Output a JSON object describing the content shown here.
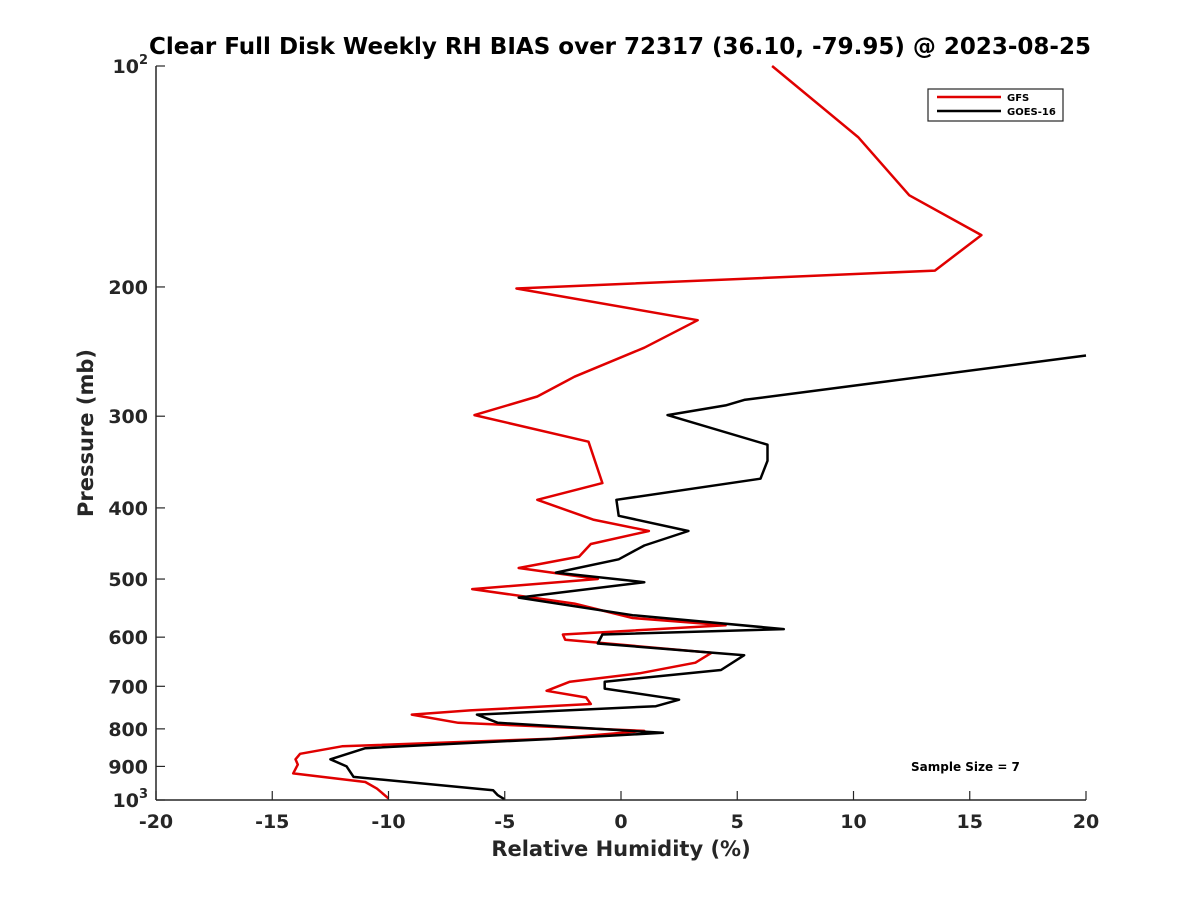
{
  "chart_data": {
    "type": "line",
    "title": "Clear Full Disk Weekly RH BIAS over 72317 (36.10, -79.95) @ 2023-08-25",
    "xlabel": "Relative Humidity (%)",
    "ylabel": "Pressure (mb)",
    "xlim": [
      -20,
      20
    ],
    "ylim": [
      100,
      1000
    ],
    "y_scale": "log",
    "y_reversed": true,
    "grid": false,
    "legend_position": "top-right",
    "x_ticks": [
      -20,
      -15,
      -10,
      -5,
      0,
      5,
      10,
      15,
      20
    ],
    "x_tick_labels": [
      "-20",
      "-15",
      "-10",
      "-5",
      "0",
      "5",
      "10",
      "15",
      "20"
    ],
    "y_ticks": [
      100,
      200,
      300,
      400,
      500,
      600,
      700,
      800,
      900,
      1000
    ],
    "y_tick_labels": [
      "10^2",
      "200",
      "300",
      "400",
      "500",
      "600",
      "700",
      "800",
      "900",
      "10^3"
    ],
    "annotation": "Sample Size = 7",
    "series": [
      {
        "name": "GFS",
        "color": "#e00000",
        "points": [
          [
            6.5,
            100
          ],
          [
            10.2,
            125
          ],
          [
            12.4,
            150
          ],
          [
            15.5,
            170
          ],
          [
            13.5,
            190
          ],
          [
            -4.5,
            201
          ],
          [
            3.3,
            222
          ],
          [
            1.0,
            242
          ],
          [
            -2.0,
            265
          ],
          [
            -3.6,
            282
          ],
          [
            -6.3,
            299
          ],
          [
            -1.4,
            325
          ],
          [
            -0.8,
            370
          ],
          [
            -3.6,
            390
          ],
          [
            -1.2,
            415
          ],
          [
            1.2,
            430
          ],
          [
            -1.3,
            448
          ],
          [
            -1.8,
            466
          ],
          [
            -4.4,
            483
          ],
          [
            -1.0,
            500
          ],
          [
            -6.4,
            516
          ],
          [
            -2.0,
            540
          ],
          [
            0.5,
            565
          ],
          [
            4.5,
            578
          ],
          [
            -2.5,
            595
          ],
          [
            -2.4,
            605
          ],
          [
            3.9,
            630
          ],
          [
            3.2,
            650
          ],
          [
            0.8,
            672
          ],
          [
            -2.2,
            690
          ],
          [
            -3.2,
            710
          ],
          [
            -1.5,
            725
          ],
          [
            -1.3,
            740
          ],
          [
            -6.5,
            755
          ],
          [
            -9.0,
            765
          ],
          [
            -7.0,
            785
          ],
          [
            1.0,
            805
          ],
          [
            -3.0,
            825
          ],
          [
            -12.0,
            845
          ],
          [
            -13.8,
            865
          ],
          [
            -14.0,
            880
          ],
          [
            -13.9,
            895
          ],
          [
            -14.1,
            920
          ],
          [
            -11.0,
            945
          ],
          [
            -10.5,
            965
          ],
          [
            -10.0,
            995
          ]
        ]
      },
      {
        "name": "GOES-16",
        "color": "#000000",
        "points": [
          [
            20.0,
            248
          ],
          [
            5.3,
            285
          ],
          [
            4.5,
            290
          ],
          [
            2.0,
            299
          ],
          [
            6.3,
            328
          ],
          [
            6.3,
            345
          ],
          [
            6.0,
            365
          ],
          [
            -0.2,
            390
          ],
          [
            -0.1,
            410
          ],
          [
            2.9,
            430
          ],
          [
            1.0,
            450
          ],
          [
            -0.1,
            470
          ],
          [
            -2.8,
            490
          ],
          [
            1.0,
            505
          ],
          [
            -4.4,
            530
          ],
          [
            0.5,
            560
          ],
          [
            7.0,
            585
          ],
          [
            -0.8,
            595
          ],
          [
            -1.0,
            612
          ],
          [
            5.3,
            635
          ],
          [
            4.3,
            665
          ],
          [
            -0.7,
            690
          ],
          [
            -0.7,
            705
          ],
          [
            2.5,
            730
          ],
          [
            1.5,
            745
          ],
          [
            -6.2,
            765
          ],
          [
            -5.3,
            785
          ],
          [
            1.8,
            810
          ],
          [
            -2.8,
            825
          ],
          [
            -11.0,
            850
          ],
          [
            -12.5,
            880
          ],
          [
            -11.8,
            900
          ],
          [
            -11.5,
            930
          ],
          [
            -5.5,
            970
          ],
          [
            -5.3,
            985
          ],
          [
            -5.0,
            998
          ]
        ]
      }
    ]
  }
}
